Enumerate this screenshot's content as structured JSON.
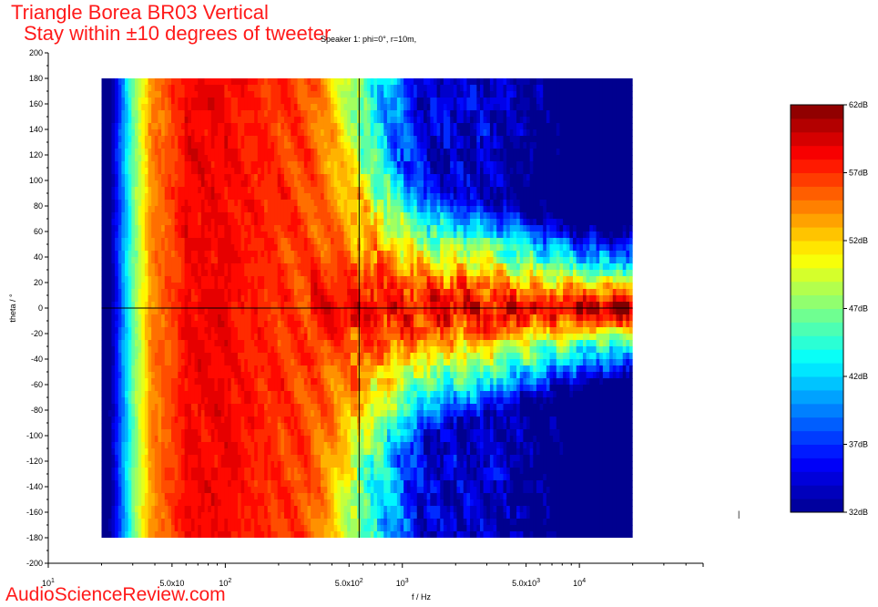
{
  "header": {
    "title_line1": "Triangle Borea BR03 Vertical",
    "title_line2": "Stay within ±10 degrees of tweeter",
    "subtitle": "Speaker 1: phi=0°, r=10m,"
  },
  "watermark": "AudioScienceReview.com",
  "chart_data": {
    "type": "heatmap",
    "xlabel": "f / Hz",
    "ylabel": "theta / °",
    "x_scale": "log",
    "xlim": [
      10,
      50000
    ],
    "ylim": [
      -200,
      200
    ],
    "x_major_ticks": [
      {
        "value": 10,
        "label": "10",
        "sup": "1"
      },
      {
        "value": 50,
        "label": "5.0x10",
        "sup": ""
      },
      {
        "value": 100,
        "label": "10",
        "sup": "2"
      },
      {
        "value": 500,
        "label": "5.0x10",
        "sup": "2"
      },
      {
        "value": 1000,
        "label": "10",
        "sup": "3"
      },
      {
        "value": 5000,
        "label": "5.0x10",
        "sup": "3"
      },
      {
        "value": 10000,
        "label": "10",
        "sup": "4"
      }
    ],
    "y_ticks": [
      200,
      180,
      160,
      140,
      120,
      100,
      80,
      60,
      40,
      20,
      0,
      -20,
      -40,
      -60,
      -80,
      -100,
      -120,
      -140,
      -160,
      -180,
      -200
    ],
    "data_extent": {
      "f_min": 20,
      "f_max": 20000,
      "theta_min": -180,
      "theta_max": 180
    },
    "crosshair": {
      "f": 570,
      "theta": 0
    },
    "colorbar": {
      "min_db": 32,
      "max_db": 62,
      "unit": "dB",
      "tick_values": [
        62,
        57,
        52,
        47,
        42,
        37,
        32
      ],
      "tick_labels": [
        "62dB",
        "57dB",
        "52dB",
        "47dB",
        "42dB",
        "37dB",
        "32dB"
      ]
    },
    "colormap": [
      "#00008f",
      "#0000ff",
      "#0080ff",
      "#00ffff",
      "#80ff80",
      "#ffff00",
      "#ff8000",
      "#ff0000",
      "#800000"
    ]
  }
}
